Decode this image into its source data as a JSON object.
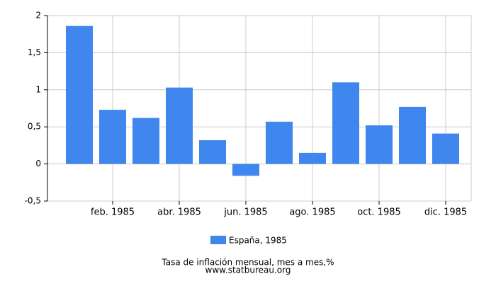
{
  "chart_data": {
    "type": "bar",
    "title": "Tasa de inflación mensual, mes a mes,%",
    "source": "www.statbureau.org",
    "categories": [
      null,
      "feb. 1985",
      null,
      "abr. 1985",
      null,
      "jun. 1985",
      null,
      "ago. 1985",
      null,
      "oct. 1985",
      null,
      "dic. 1985"
    ],
    "series": [
      {
        "name": "España, 1985",
        "color": "#3f87ef",
        "values": [
          1.86,
          0.73,
          0.62,
          1.03,
          0.32,
          -0.16,
          0.57,
          0.15,
          1.1,
          0.52,
          0.77,
          0.41
        ]
      }
    ],
    "ylim": [
      -0.5,
      2
    ],
    "yticks": [
      {
        "value": -0.5,
        "label": "-0,5"
      },
      0,
      {
        "value": 0.5,
        "label": "0,5"
      },
      1,
      {
        "value": 1.5,
        "label": "1,5"
      },
      2
    ],
    "grid": true
  }
}
